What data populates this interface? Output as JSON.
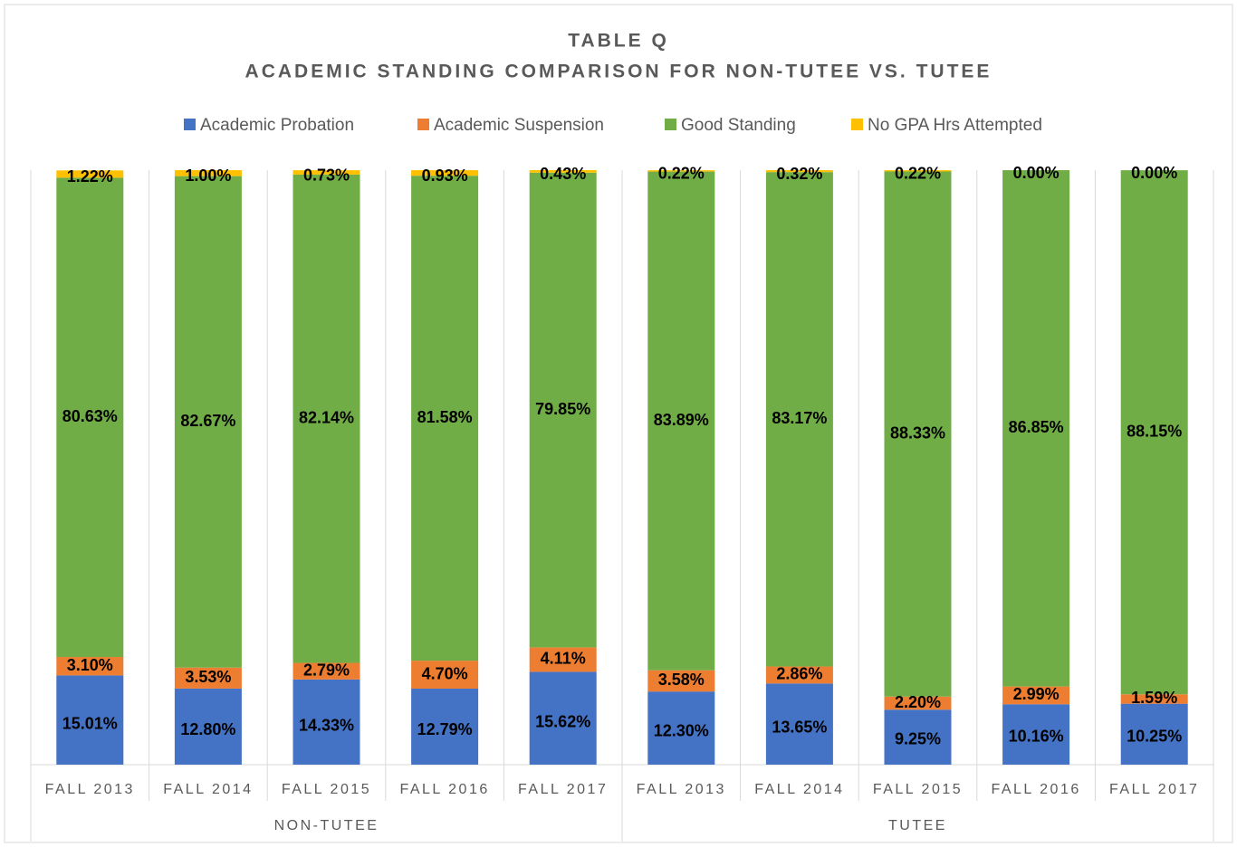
{
  "chart_data": {
    "type": "stacked_bar",
    "title": "TABLE Q",
    "subtitle": "ACADEMIC STANDING COMPARISON FOR NON-TUTEE VS. TUTEE",
    "groups": [
      {
        "name": "NON-TUTEE",
        "categories": [
          "FALL 2013",
          "FALL 2014",
          "FALL 2015",
          "FALL 2016",
          "FALL 2017"
        ]
      },
      {
        "name": "TUTEE",
        "categories": [
          "FALL 2013",
          "FALL 2014",
          "FALL 2015",
          "FALL 2016",
          "FALL 2017"
        ]
      }
    ],
    "legend": "top",
    "series": [
      {
        "name": "Academic Probation",
        "color": "#4472c4",
        "values": [
          15.01,
          12.8,
          14.33,
          12.79,
          15.62,
          12.3,
          13.65,
          9.25,
          10.16,
          10.25
        ],
        "value_labels": [
          "15.01%",
          "12.80%",
          "14.33%",
          "12.79%",
          "15.62%",
          "12.30%",
          "13.65%",
          "9.25%",
          "10.16%",
          "10.25%"
        ]
      },
      {
        "name": "Academic Suspension",
        "color": "#ed7d31",
        "values": [
          3.1,
          3.53,
          2.79,
          4.7,
          4.11,
          3.58,
          2.86,
          2.2,
          2.99,
          1.59
        ],
        "value_labels": [
          "3.10%",
          "3.53%",
          "2.79%",
          "4.70%",
          "4.11%",
          "3.58%",
          "2.86%",
          "2.20%",
          "2.99%",
          "1.59%"
        ]
      },
      {
        "name": "Good Standing",
        "color": "#70ad47",
        "values": [
          80.63,
          82.67,
          82.14,
          81.58,
          79.85,
          83.89,
          83.17,
          88.33,
          86.85,
          88.15
        ],
        "value_labels": [
          "80.63%",
          "82.67%",
          "82.14%",
          "81.58%",
          "79.85%",
          "83.89%",
          "83.17%",
          "88.33%",
          "86.85%",
          "88.15%"
        ]
      },
      {
        "name": "No GPA Hrs Attempted",
        "color": "#ffc000",
        "values": [
          1.22,
          1.0,
          0.73,
          0.93,
          0.43,
          0.22,
          0.32,
          0.22,
          0.0,
          0.0
        ],
        "value_labels": [
          "1.22%",
          "1.00%",
          "0.73%",
          "0.93%",
          "0.43%",
          "0.22%",
          "0.32%",
          "0.22%",
          "0.00%",
          "0.00%"
        ]
      }
    ]
  }
}
